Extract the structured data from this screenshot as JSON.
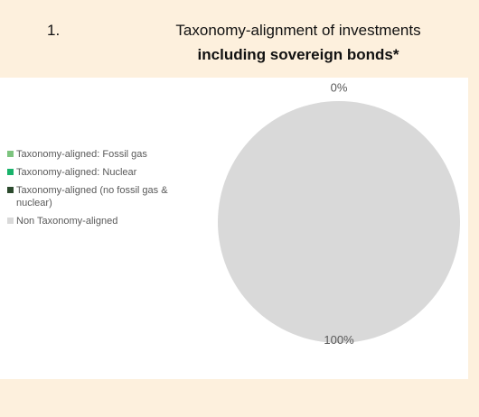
{
  "chart_data": {
    "type": "pie",
    "number": "1.",
    "title": "Taxonomy-alignment of investments",
    "subtitle": "including sovereign bonds*",
    "categories": [
      "Taxonomy-aligned: Fossil gas",
      "Taxonomy-aligned: Nuclear",
      "Taxonomy-aligned (no fossil gas & nuclear)",
      "Non Taxonomy-aligned"
    ],
    "values": [
      0,
      0,
      0,
      100
    ],
    "value_labels": [
      "0%",
      null,
      null,
      "100%"
    ],
    "colors": [
      "#7dc47f",
      "#19b36b",
      "#2b4a2d",
      "#d9d9d9"
    ],
    "legend": "left"
  }
}
